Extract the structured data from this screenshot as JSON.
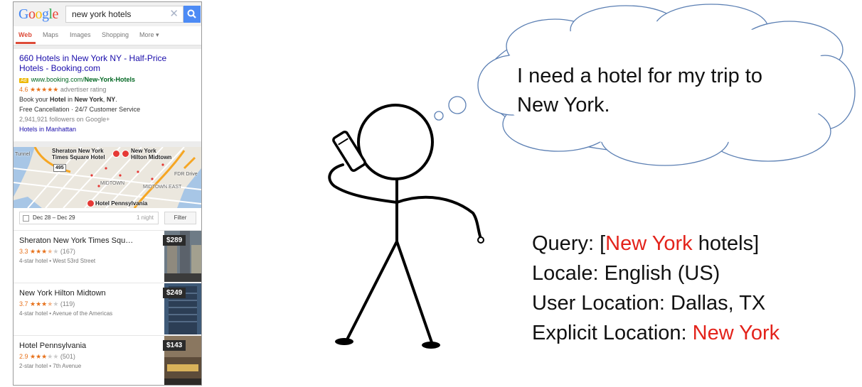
{
  "google": {
    "logo_letters": [
      {
        "ch": "G",
        "color": "#4285f4"
      },
      {
        "ch": "o",
        "color": "#ea4335"
      },
      {
        "ch": "o",
        "color": "#fbbc05"
      },
      {
        "ch": "g",
        "color": "#4285f4"
      },
      {
        "ch": "l",
        "color": "#34a853"
      },
      {
        "ch": "e",
        "color": "#ea4335"
      }
    ],
    "query": "new york hotels",
    "clear_glyph": "✕",
    "tabs": [
      "Web",
      "Maps",
      "Images",
      "Shopping",
      "More ▾"
    ],
    "active_tab": "Web",
    "ad": {
      "title": "660 Hotels in New York NY - Half-Price Hotels - Booking.com",
      "badge": "Ad",
      "url_prefix": "www.booking.com/",
      "url_bold": "New-York-Hotels",
      "rating_value": "4.6",
      "rating_stars": "★★★★★",
      "rating_label": "advertiser rating",
      "desc_1": "Book your",
      "desc_bold_1": "Hotel",
      "desc_2": "in",
      "desc_bold_2": "New York",
      "desc_3": ",",
      "desc_bold_3": "NY",
      "desc_4": ".",
      "line_2": "Free Cancellation · 24/7 Customer Service",
      "followers": "2,941,921 followers on Google+",
      "sitelink": "Hotels in Manhattan"
    },
    "map": {
      "labels": {
        "sheraton": "Sheraton New York\nTimes Square Hotel",
        "hilton": "New York\nHilton Midtown",
        "midtown": "MIDTOWN",
        "midtown_east": "MIDTOWN EAST",
        "pennsylvania": "Hotel Pennsylvania",
        "route": "495",
        "tunnel": "Tunnel",
        "fdr": "FDR Drive"
      }
    },
    "dates": {
      "range": "Dec 28 – Dec 29",
      "nights": "1 night",
      "filter": "Filter"
    },
    "hotels": [
      {
        "name": "Sheraton New York Times Squ…",
        "rating": "3.3",
        "stars": "★★★",
        "half": "★",
        "empty": "★",
        "reviews": "(167)",
        "meta": "4-star hotel • West 53rd Street",
        "price": "$289"
      },
      {
        "name": "New York Hilton Midtown",
        "rating": "3.7",
        "stars": "★★★",
        "half": "★",
        "empty": "★",
        "reviews": "(119)",
        "meta": "4-star hotel • Avenue of the Americas",
        "price": "$249"
      },
      {
        "name": "Hotel Pennsylvania",
        "rating": "2.9",
        "stars": "★★★",
        "half": "",
        "empty": "★★",
        "reviews": "(501)",
        "meta": "2-star hotel • 7th Avenue",
        "price": "$143"
      }
    ]
  },
  "thought": {
    "line1": "I need a hotel for my trip to",
    "line2": "New York."
  },
  "info": {
    "query_label": "Query: [",
    "query_location": "New York",
    "query_rest": " hotels]",
    "locale": "Locale: English (US)",
    "user_location": "User Location: Dallas, TX",
    "explicit_label": "Explicit Location: ",
    "explicit_value": "New York"
  },
  "colors": {
    "accent_red": "#e3231b",
    "link_blue": "#1a0dab",
    "search_blue": "#4d8bf5"
  }
}
